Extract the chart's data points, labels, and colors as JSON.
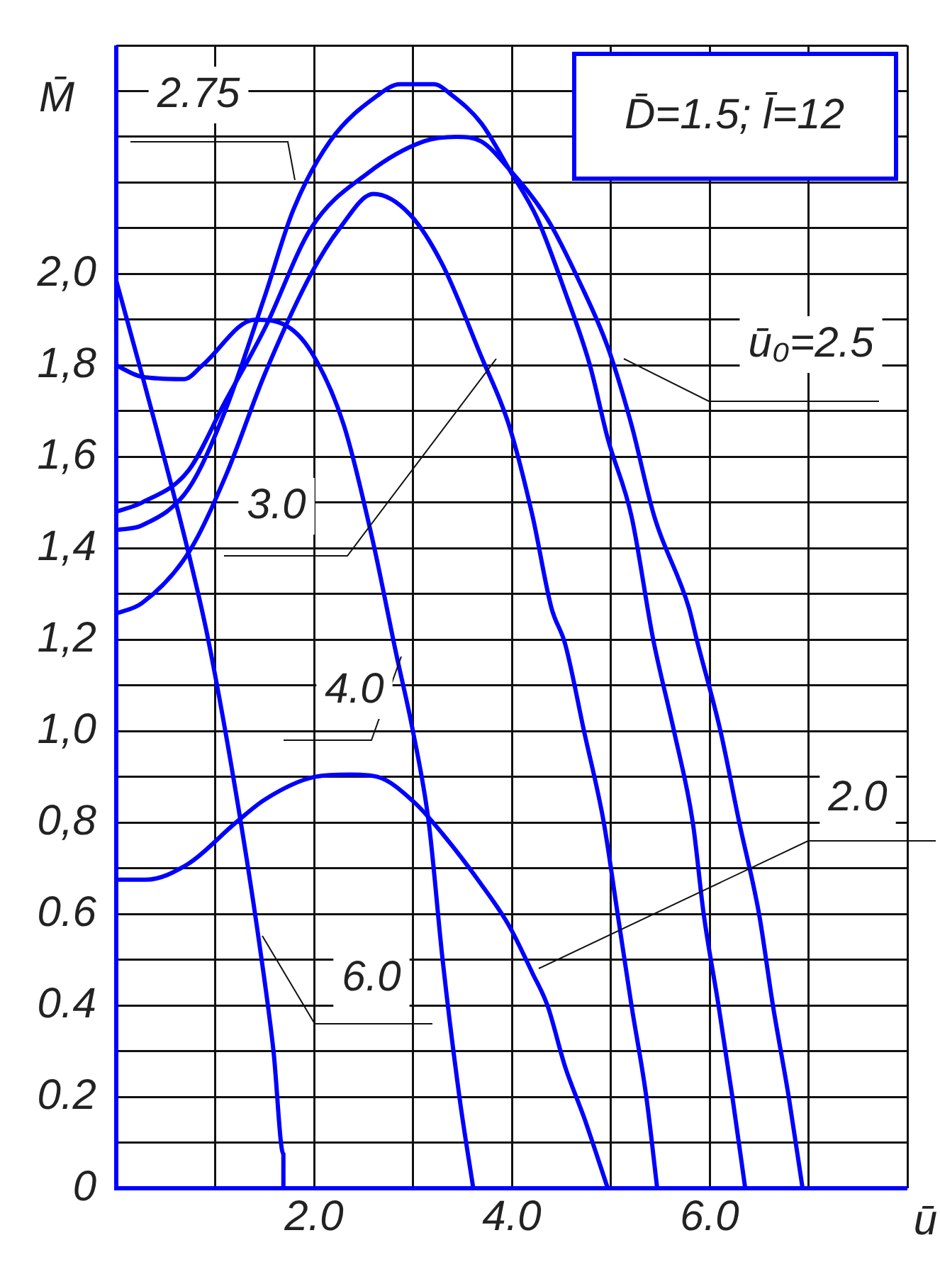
{
  "chart_data": {
    "type": "line",
    "xlabel": "ū",
    "ylabel": "M̄",
    "xlim": [
      0,
      8
    ],
    "ylim": [
      0,
      2.5
    ],
    "xticks": [
      {
        "value": 0,
        "label": null
      },
      {
        "value": 1,
        "label": null
      },
      {
        "value": 2,
        "label": "2.0"
      },
      {
        "value": 3,
        "label": null
      },
      {
        "value": 4,
        "label": "4.0"
      },
      {
        "value": 5,
        "label": null
      },
      {
        "value": 6,
        "label": "6.0"
      },
      {
        "value": 7,
        "label": null
      },
      {
        "value": 8,
        "label": null
      }
    ],
    "yticks": [
      0,
      {
        "value": 0.1,
        "label": null
      },
      {
        "value": 0.2,
        "label": "0.2"
      },
      {
        "value": 0.3,
        "label": null
      },
      {
        "value": 0.4,
        "label": "0.4"
      },
      {
        "value": 0.5,
        "label": null
      },
      {
        "value": 0.6,
        "label": "0.6"
      },
      {
        "value": 0.7,
        "label": null
      },
      {
        "value": 0.8,
        "label": "0,8"
      },
      {
        "value": 0.9,
        "label": null
      },
      {
        "value": 1.0,
        "label": "1,0"
      },
      {
        "value": 1.1,
        "label": null
      },
      {
        "value": 1.2,
        "label": "1,2"
      },
      {
        "value": 1.3,
        "label": null
      },
      {
        "value": 1.4,
        "label": "1,4"
      },
      {
        "value": 1.5,
        "label": null
      },
      {
        "value": 1.6,
        "label": "1,6"
      },
      {
        "value": 1.7,
        "label": null
      },
      {
        "value": 1.8,
        "label": "1,8"
      },
      {
        "value": 1.9,
        "label": null
      },
      {
        "value": 2.0,
        "label": "2,0"
      },
      {
        "value": 2.1,
        "label": null
      },
      {
        "value": 2.2,
        "label": null
      },
      {
        "value": 2.3,
        "label": null
      },
      {
        "value": 2.4,
        "label": null
      },
      {
        "value": 2.5,
        "label": null
      }
    ],
    "grid": true,
    "legend": false,
    "marker": "none",
    "line_style": "solid",
    "annotations": [
      "D̄=1.5; l̄=12"
    ],
    "series": [
      {
        "name": "2.75",
        "color": "#0000ff",
        "x": [
          0,
          0.26,
          0.73,
          1.1,
          1.5,
          1.79,
          2.16,
          2.64,
          2.87,
          3.21,
          3.4,
          3.69,
          3.97,
          4.26,
          4.54,
          4.79,
          4.97,
          5.21,
          5.43,
          5.64,
          5.83,
          5.94,
          6.09,
          6.23,
          6.36
        ],
        "values": [
          1.44,
          1.45,
          1.53,
          1.7,
          1.95,
          2.14,
          2.29,
          2.39,
          2.415,
          2.415,
          2.39,
          2.33,
          2.23,
          2.12,
          1.96,
          1.8,
          1.64,
          1.47,
          1.2,
          1.0,
          0.8,
          0.6,
          0.4,
          0.2,
          0
        ]
      },
      {
        "name": "ū₀=2.5",
        "color": "#0000ff",
        "x": [
          0,
          0.26,
          0.73,
          1.1,
          1.5,
          1.97,
          2.54,
          3.11,
          3.44,
          3.69,
          3.97,
          4.36,
          4.69,
          4.97,
          5.21,
          5.44,
          5.79,
          5.87,
          6.11,
          6.3,
          6.5,
          6.64,
          6.8,
          6.94
        ],
        "values": [
          1.48,
          1.5,
          1.57,
          1.72,
          1.88,
          2.1,
          2.22,
          2.29,
          2.3,
          2.29,
          2.23,
          2.12,
          1.98,
          1.84,
          1.67,
          1.47,
          1.27,
          1.2,
          1.0,
          0.8,
          0.6,
          0.4,
          0.2,
          0
        ]
      },
      {
        "name": "3.0",
        "color": "#0000ff",
        "x": [
          0,
          0.26,
          0.73,
          1.11,
          1.5,
          1.97,
          2.26,
          2.6,
          2.97,
          3.3,
          3.69,
          3.97,
          4.21,
          4.4,
          4.54,
          4.73,
          4.93,
          5.07,
          5.21,
          5.36,
          5.47
        ],
        "values": [
          1.257,
          1.28,
          1.39,
          1.56,
          1.78,
          2.0,
          2.1,
          2.175,
          2.13,
          2.02,
          1.82,
          1.67,
          1.47,
          1.27,
          1.19,
          1.0,
          0.8,
          0.6,
          0.4,
          0.2,
          0
        ]
      },
      {
        "name": "4.0",
        "color": "#0000ff",
        "x": [
          0,
          0.26,
          0.69,
          0.87,
          1.4,
          1.69,
          1.97,
          2.3,
          2.59,
          2.83,
          3.0,
          3.16,
          3.3,
          3.47,
          3.61
        ],
        "values": [
          1.8,
          1.775,
          1.77,
          1.8,
          1.9,
          1.89,
          1.83,
          1.67,
          1.42,
          1.17,
          1.0,
          0.8,
          0.5,
          0.2,
          0
        ]
      },
      {
        "name": "6.0",
        "color": "#0000ff",
        "x": [
          0,
          0.26,
          0.73,
          0.93,
          1.26,
          1.47,
          1.59,
          1.69,
          1.69
        ],
        "values": [
          1.985,
          1.78,
          1.39,
          1.2,
          0.8,
          0.5,
          0.3,
          0.075,
          0
        ]
      },
      {
        "name": "2.0",
        "color": "#0000ff",
        "x": [
          0,
          0.3,
          0.73,
          1.21,
          1.5,
          2.01,
          2.36,
          2.64,
          3.01,
          3.3,
          3.69,
          3.97,
          4.21,
          4.36,
          4.54,
          4.73,
          4.97
        ],
        "values": [
          0.675,
          0.675,
          0.71,
          0.8,
          0.85,
          0.9,
          0.905,
          0.9,
          0.845,
          0.775,
          0.665,
          0.575,
          0.47,
          0.4,
          0.265,
          0.155,
          0
        ]
      }
    ]
  }
}
